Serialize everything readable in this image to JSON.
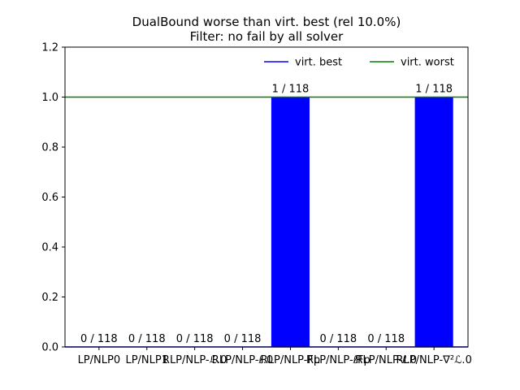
{
  "chart_data": {
    "type": "bar",
    "title": "DualBound worse than virt. best (rel 10.0%)",
    "subtitle": "Filter: no fail by all solver",
    "xlabel": "",
    "ylabel": "",
    "ylim": [
      0,
      1.2
    ],
    "yticks": [
      "0.0",
      "0.2",
      "0.4",
      "0.6",
      "0.8",
      "1.0",
      "1.2"
    ],
    "grid": false,
    "legend_position": "top-right",
    "categories": [
      "LP/NLP0",
      "LP/NLP1",
      "RLP/NLP-ℒ.0",
      "RLP/NLP-ℓ.0",
      "RLP/NLP-Fp",
      "RLP/NLP-ℓFp",
      "RLP/NLP-ℓ.0",
      "RLP/NLP-∇²ℒ.0"
    ],
    "values": [
      0,
      0,
      0,
      0,
      1,
      0,
      0,
      1
    ],
    "bar_labels": [
      "0 / 118",
      "0 / 118",
      "0 / 118",
      "0 / 118",
      "1 / 118",
      "0 / 118",
      "0 / 118",
      "1 / 118"
    ],
    "bar_color": "#0000ff",
    "reference_lines": [
      {
        "name": "virt. best",
        "value": 0,
        "color": "#0000ff"
      },
      {
        "name": "virt. worst",
        "value": 1.0,
        "color": "#008000"
      }
    ]
  }
}
